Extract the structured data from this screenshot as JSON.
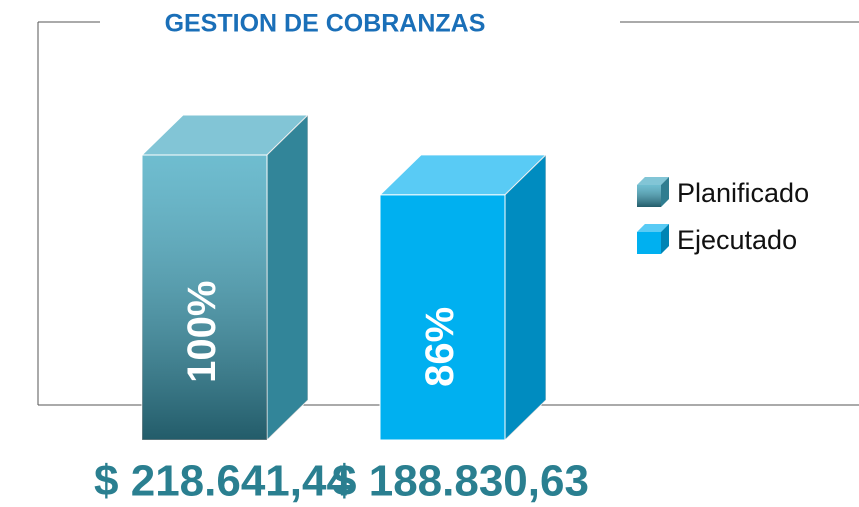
{
  "chart_data": {
    "type": "bar",
    "title": "GESTION DE COBRANZAS",
    "series": [
      {
        "name": "Planificado",
        "color": "#3fa7c0",
        "gradient": true,
        "values": [
          100
        ],
        "value_labels": [
          "100%"
        ]
      },
      {
        "name": "Ejecutado",
        "color": "#00b0f0",
        "gradient": false,
        "values": [
          86
        ],
        "value_labels": [
          "86%"
        ]
      }
    ],
    "annotations": [
      "$ 218.641,44",
      "$ 188.830,63"
    ],
    "ylim": [
      0,
      100
    ],
    "legend": "right"
  }
}
